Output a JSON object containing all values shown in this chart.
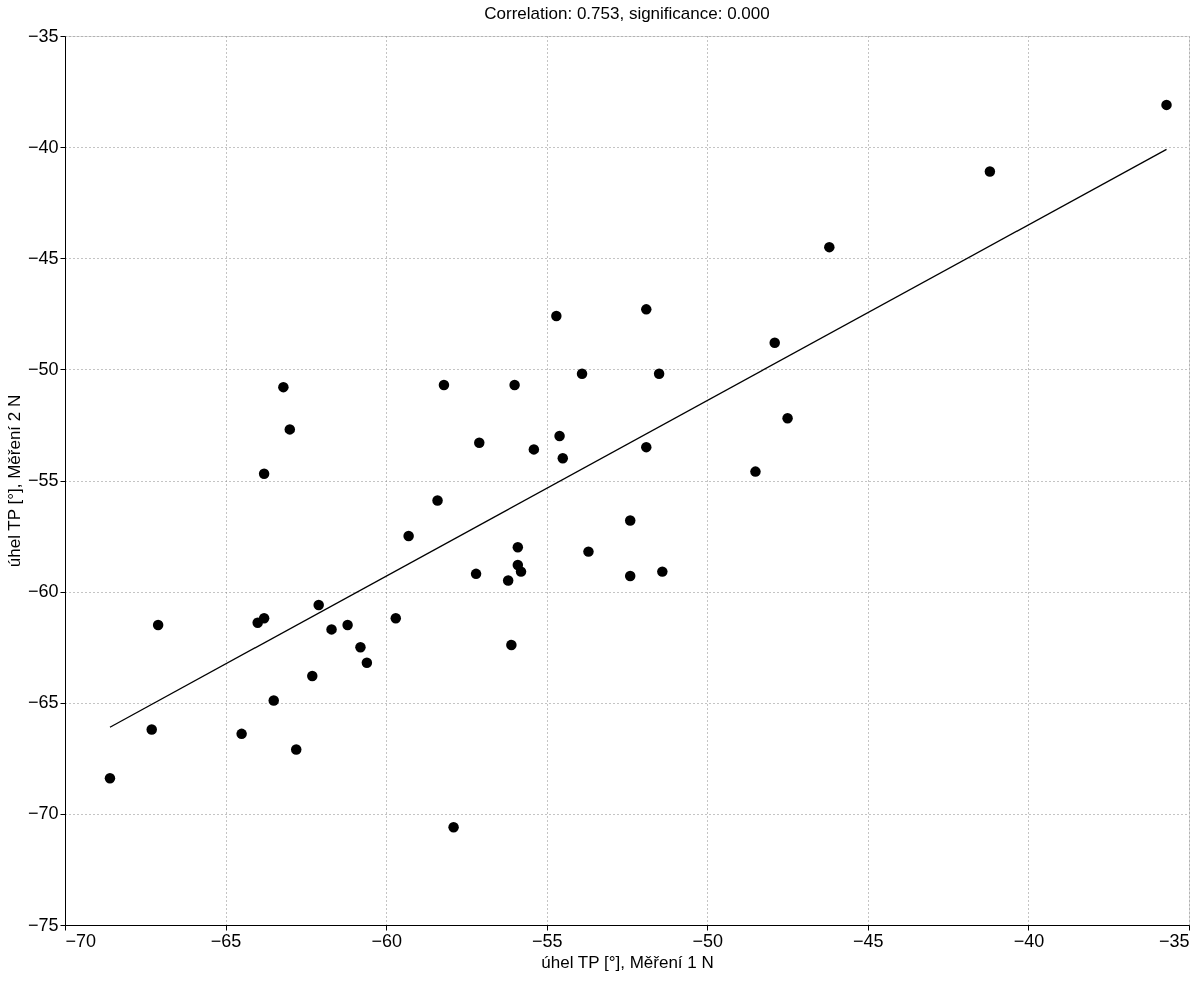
{
  "chart_data": {
    "type": "scatter",
    "title": "Correlation: 0.753, significance: 0.000",
    "xlabel": "úhel TP [°], Měření 1 N",
    "ylabel": "úhel TP [°], Měření 2 N",
    "xlim": [
      -70,
      -35
    ],
    "ylim": [
      -75,
      -35
    ],
    "xticks": [
      -70,
      -65,
      -60,
      -55,
      -50,
      -45,
      -40,
      -35
    ],
    "yticks": [
      -75,
      -70,
      -65,
      -60,
      -55,
      -50,
      -45,
      -40,
      -35
    ],
    "grid": true,
    "series": [
      {
        "color": "#000000",
        "marker": "circle",
        "x": [
          -68.6,
          -67.3,
          -67.1,
          -64.5,
          -64.0,
          -63.8,
          -63.8,
          -63.5,
          -63.2,
          -63.0,
          -62.8,
          -62.3,
          -62.1,
          -61.7,
          -61.2,
          -60.8,
          -60.6,
          -59.7,
          -59.3,
          -58.4,
          -58.2,
          -57.9,
          -57.2,
          -57.1,
          -56.2,
          -56.1,
          -56.0,
          -55.9,
          -55.9,
          -55.8,
          -55.4,
          -54.7,
          -54.6,
          -54.5,
          -53.9,
          -53.7,
          -52.4,
          -52.4,
          -51.9,
          -51.9,
          -51.5,
          -51.4,
          -48.5,
          -47.9,
          -47.5,
          -46.2,
          -41.2,
          -35.7
        ],
        "values": [
          -68.4,
          -66.2,
          -61.5,
          -66.4,
          -61.4,
          -61.2,
          -54.7,
          -64.9,
          -50.8,
          -52.7,
          -67.1,
          -63.8,
          -60.6,
          -61.7,
          -61.5,
          -62.5,
          -63.2,
          -61.2,
          -57.5,
          -55.9,
          -50.7,
          -70.6,
          -59.2,
          -53.3,
          -59.5,
          -62.4,
          -50.7,
          -58.8,
          -58.0,
          -59.1,
          -53.6,
          -47.6,
          -53.0,
          -54.0,
          -50.2,
          -58.2,
          -56.8,
          -59.3,
          -47.3,
          -53.5,
          -50.2,
          -59.1,
          -54.6,
          -48.8,
          -52.2,
          -44.5,
          -41.1,
          -38.1
        ]
      },
      {
        "type": "line",
        "color": "#000000",
        "line_style": "solid",
        "x": [
          -68.6,
          -35.7
        ],
        "values": [
          -66.1,
          -40.1
        ]
      }
    ]
  }
}
